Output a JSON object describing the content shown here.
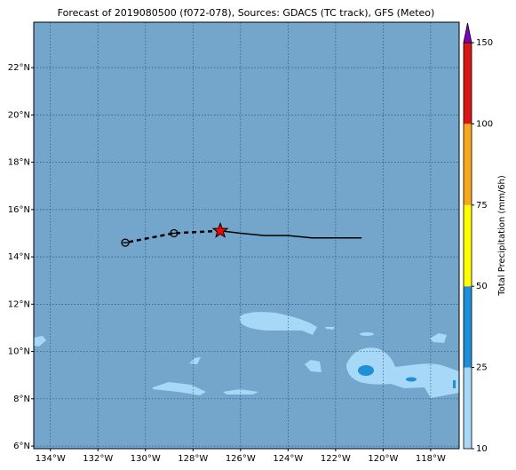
{
  "chart_data": {
    "type": "map",
    "title": "Forecast of 2019080500 (f072-078), Sources: GDACS (TC track), GFS (Meteo)",
    "xlim": [
      -134.7,
      -116.8
    ],
    "ylim": [
      5.89,
      23.92
    ],
    "xticks": [
      {
        "value": -134,
        "label": "134°W"
      },
      {
        "value": -132,
        "label": "132°W"
      },
      {
        "value": -130,
        "label": "130°W"
      },
      {
        "value": -128,
        "label": "128°W"
      },
      {
        "value": -126,
        "label": "126°W"
      },
      {
        "value": -124,
        "label": "124°W"
      },
      {
        "value": -122,
        "label": "122°W"
      },
      {
        "value": -120,
        "label": "120°W"
      },
      {
        "value": -118,
        "label": "118°W"
      }
    ],
    "yticks": [
      {
        "value": 6,
        "label": "6°N"
      },
      {
        "value": 8,
        "label": "8°N"
      },
      {
        "value": 10,
        "label": "10°N"
      },
      {
        "value": 12,
        "label": "12°N"
      },
      {
        "value": 14,
        "label": "14°N"
      },
      {
        "value": 16,
        "label": "16°N"
      },
      {
        "value": 18,
        "label": "18°N"
      },
      {
        "value": 20,
        "label": "20°N"
      },
      {
        "value": 22,
        "label": "22°N"
      }
    ],
    "grid": true,
    "ocean_color": "#74a6cc",
    "past_track": {
      "color": "#000000",
      "x": [
        -120.9,
        -122,
        -123,
        -124,
        -125,
        -126,
        -126.85
      ],
      "y": [
        14.8,
        14.8,
        14.8,
        14.9,
        14.9,
        15.0,
        15.1
      ]
    },
    "forecast_track": {
      "color": "#000000",
      "x": [
        -126.85,
        -128.8,
        -130.85
      ],
      "y": [
        15.1,
        15.0,
        14.6
      ]
    },
    "current_marker_color": "#ff0000",
    "colorbar": {
      "label": "Total Precipitation (mm/6h)",
      "levels": [
        10,
        25,
        50,
        75,
        100,
        150
      ],
      "colors": [
        "#a8d8f8",
        "#1e90d8",
        "#ffff00",
        "#f8a820",
        "#d81818"
      ],
      "extend_color": "#8000c0"
    }
  }
}
